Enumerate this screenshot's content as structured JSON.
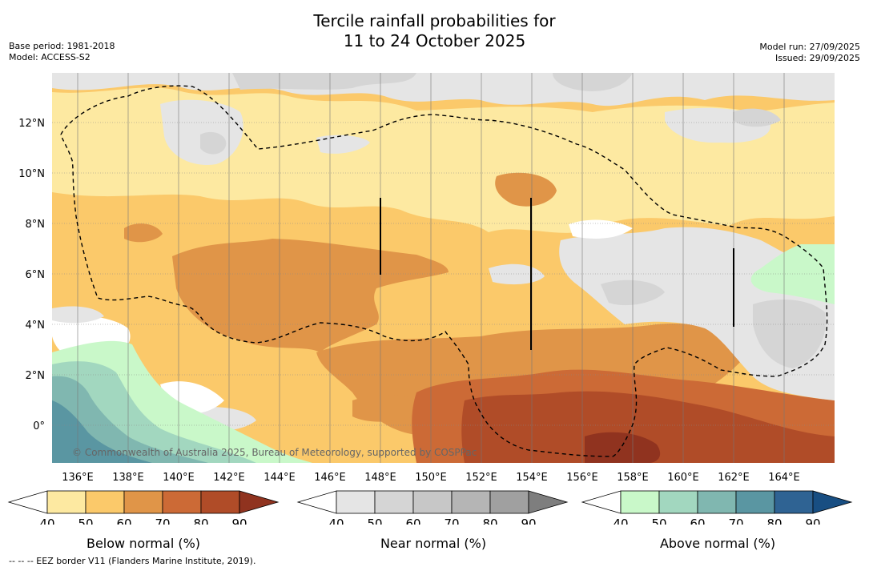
{
  "header": {
    "title_line1": "Tercile rainfall probabilities for",
    "title_line2": "11 to 24 October 2025",
    "base_period": "Base period: 1981-2018",
    "model": "Model: ACCESS-S2",
    "model_run": "Model run: 27/09/2025",
    "issued": "Issued: 29/09/2025"
  },
  "map": {
    "lat_labels": [
      "12°N",
      "10°N",
      "8°N",
      "6°N",
      "4°N",
      "2°N",
      "0°"
    ],
    "lon_labels": [
      "136°E",
      "138°E",
      "140°E",
      "142°E",
      "144°E",
      "146°E",
      "148°E",
      "150°E",
      "152°E",
      "154°E",
      "156°E",
      "158°E",
      "160°E",
      "162°E",
      "164°E"
    ],
    "copyright": "© Commonwealth of Australia 2025, Bureau of Meteorology, supported by COSPPac",
    "colors": {
      "below": [
        "#fde9a1",
        "#fbc96a",
        "#e09548",
        "#cc6a36",
        "#b04c28",
        "#90331f"
      ],
      "near": [
        "#e5e5e5",
        "#d5d5d5",
        "#c7c7c7",
        "#b5b5b5",
        "#a0a0a0",
        "#7e7e7e"
      ],
      "above": [
        "#c9f8c9",
        "#a2d7bf",
        "#80b7b0",
        "#5a96a2",
        "#2f6393",
        "#184e82"
      ]
    }
  },
  "colorbars": {
    "ticks": [
      "40",
      "50",
      "60",
      "70",
      "80",
      "90"
    ],
    "below_label": "Below normal (%)",
    "near_label": "Near normal (%)",
    "above_label": "Above normal (%)"
  },
  "footer": {
    "eez_note": "--  --  -- EEZ border V11 (Flanders Marine Institute, 2019)."
  }
}
